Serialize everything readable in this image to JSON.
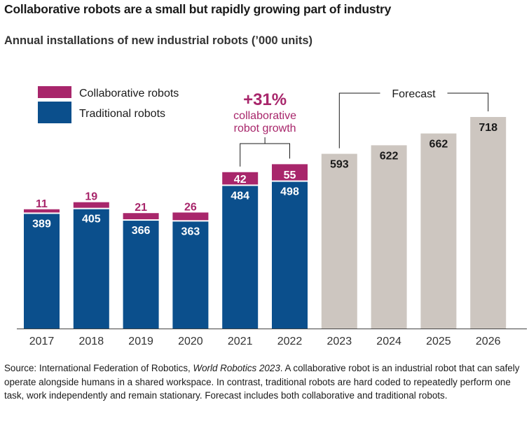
{
  "title": "Collaborative robots are a small but rapidly growing part of industry",
  "subtitle": "Annual installations of new industrial robots (’000 units)",
  "source": {
    "prefix": "Source: International Federation of Robotics, ",
    "italic": "World Robotics 2023",
    "suffix": ". A collaborative robot is an industrial robot that can safely operate alongside humans in a shared workspace. In contrast, traditional robots are hard coded to repeatedly perform one task, work independently and remain stationary. Forecast includes both collaborative and traditional robots."
  },
  "chart_data": {
    "type": "bar",
    "stacked": true,
    "categories": [
      "2017",
      "2018",
      "2019",
      "2020",
      "2021",
      "2022",
      "2023",
      "2024",
      "2025",
      "2026"
    ],
    "series": [
      {
        "name": "Traditional robots",
        "color": "#0b4f8c",
        "values": [
          389,
          405,
          366,
          363,
          484,
          498,
          null,
          null,
          null,
          null
        ]
      },
      {
        "name": "Collaborative robots",
        "color": "#a8266b",
        "values": [
          11,
          19,
          21,
          26,
          42,
          55,
          null,
          null,
          null,
          null
        ]
      },
      {
        "name": "",
        "color": "#cdc6c0",
        "values": [
          null,
          null,
          null,
          null,
          null,
          null,
          593,
          622,
          662,
          718
        ]
      }
    ],
    "legend": {
      "placement": "top-left",
      "entries": [
        "Collaborative robots",
        "Traditional robots"
      ]
    },
    "annotations": {
      "growth": {
        "value": "+31%",
        "line1": "collaborative",
        "line2": "robot growth",
        "color": "#a8266b"
      },
      "forecast": {
        "label": "Forecast"
      }
    },
    "ylim": [
      0,
      718
    ]
  }
}
